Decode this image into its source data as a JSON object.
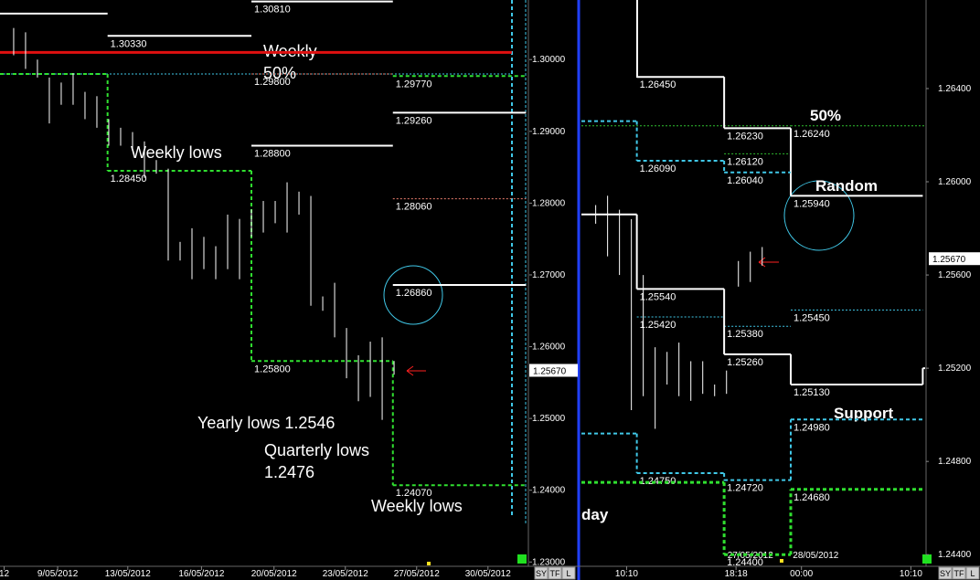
{
  "chart_data": [
    {
      "type": "ohlc",
      "xlim": [
        -0.15,
        44.3
      ],
      "ylim": [
        1.2294,
        1.3083
      ],
      "yticks": [
        {
          "value": 1.3,
          "label": "1.30000"
        },
        {
          "value": 1.29,
          "label": "1.29000"
        },
        {
          "value": 1.28,
          "label": "1.28000"
        },
        {
          "value": 1.27,
          "label": "1.27000"
        },
        {
          "value": 1.26,
          "label": "1.26000"
        },
        {
          "value": 1.25,
          "label": "1.25000"
        },
        {
          "value": 1.24,
          "label": "1.24000"
        },
        {
          "value": 1.23,
          "label": "1.23000"
        }
      ],
      "xticks": [
        {
          "value": 0.2,
          "label": "12"
        },
        {
          "value": 4.7,
          "label": "9/05/2012"
        },
        {
          "value": 10.6,
          "label": "13/05/2012"
        },
        {
          "value": 16.8,
          "label": "16/05/2012"
        },
        {
          "value": 22.9,
          "label": "20/05/2012"
        },
        {
          "value": 28.9,
          "label": "23/05/2012"
        },
        {
          "value": 34.9,
          "label": "27/05/2012"
        },
        {
          "value": 40.9,
          "label": "30/05/2012"
        }
      ],
      "bar_color": "#ffffff",
      "x": [
        1,
        2,
        3,
        4,
        5,
        6,
        7,
        8,
        9,
        10,
        11,
        12,
        13,
        14,
        15,
        16,
        17,
        18,
        19,
        20,
        21,
        22,
        23,
        24,
        25,
        26,
        27,
        28,
        29,
        30,
        31,
        32,
        33
      ],
      "high": [
        1.3044,
        1.3038,
        1.3,
        1.2975,
        1.2968,
        1.2981,
        1.2955,
        1.2949,
        1.2917,
        1.2905,
        1.2899,
        1.2886,
        1.286,
        1.2848,
        1.2746,
        1.2765,
        1.2753,
        1.274,
        1.2784,
        1.2778,
        1.2791,
        1.2803,
        1.2803,
        1.2829,
        1.2816,
        1.281,
        1.267,
        1.2689,
        1.2626,
        1.2588,
        1.2607,
        1.2613,
        1.258
      ],
      "low": [
        1.3006,
        1.2987,
        1.2975,
        1.2911,
        1.2937,
        1.2937,
        1.2917,
        1.2905,
        1.288,
        1.288,
        1.2873,
        1.2835,
        1.2841,
        1.272,
        1.272,
        1.2694,
        1.2708,
        1.2694,
        1.2708,
        1.2694,
        1.2753,
        1.2759,
        1.2772,
        1.2759,
        1.2784,
        1.2657,
        1.265,
        1.2613,
        1.2556,
        1.2524,
        1.253,
        1.2498,
        1.2561
      ],
      "levels": [
        {
          "value": 1.3081,
          "label": "1.30810",
          "color": "#ffffff",
          "style": "solid",
          "from": 21,
          "to": 32.9
        },
        {
          "value": 1.3064,
          "color": "#ffffff",
          "style": "solid",
          "from": -0.15,
          "to": 8.9
        },
        {
          "value": 1.3033,
          "label": "1.30330",
          "color": "#ffffff",
          "style": "solid",
          "from": 8.9,
          "to": 21
        },
        {
          "value": 1.301,
          "color": "#e01010",
          "style": "thick",
          "from": -0.15,
          "to": 42.9
        },
        {
          "value": 1.298,
          "color": "#40c8e8",
          "style": "dotted",
          "from": -0.15,
          "to": 42.9
        },
        {
          "value": 1.298,
          "label": "1.29800",
          "color": "#f08070",
          "style": "dotted",
          "from": 21,
          "to": 32.9
        },
        {
          "value": 1.2977,
          "label": "1.29770",
          "color": "#30e030",
          "style": "dashed",
          "from": 32.9,
          "to": 44.1
        },
        {
          "value": 1.2926,
          "label": "1.29260",
          "color": "#ffffff",
          "style": "solid",
          "from": 32.9,
          "to": 44.1
        },
        {
          "value": 1.288,
          "label": "1.28800",
          "color": "#ffffff",
          "style": "solid",
          "from": 21,
          "to": 32.9
        },
        {
          "value": 1.2806,
          "label": "1.28060",
          "color": "#f08070",
          "style": "dotted",
          "from": 32.9,
          "to": 44.1
        },
        {
          "value": 1.2686,
          "label": "1.26860",
          "color": "#ffffff",
          "style": "solid",
          "from": 32.9,
          "to": 44.1
        }
      ],
      "steps": [
        {
          "color": "#30e030",
          "style": "dashed",
          "edges": [
            -0.15,
            8.9,
            21,
            32.9,
            44.1
          ],
          "values": [
            1.298,
            1.2845,
            1.258,
            1.2407
          ],
          "labels": [
            null,
            "1.28450",
            "1.25800",
            "1.24070"
          ]
        }
      ],
      "last": {
        "value": 1.2567,
        "label": "1.25670"
      }
    },
    {
      "type": "ohlc",
      "xlim": [
        -1.2,
        27.7
      ],
      "ylim": [
        1.2435,
        1.2678
      ],
      "yticks": [
        {
          "value": 1.264,
          "label": "1.26400"
        },
        {
          "value": 1.26,
          "label": "1.26000"
        },
        {
          "value": 1.256,
          "label": "1.25600"
        },
        {
          "value": 1.252,
          "label": "1.25200"
        },
        {
          "value": 1.248,
          "label": "1.24800"
        },
        {
          "value": 1.244,
          "label": "1.24400"
        }
      ],
      "xticks": [
        {
          "value": 2.6,
          "label": "10:10"
        },
        {
          "value": 11.8,
          "label": "18:18"
        },
        {
          "value": 17.3,
          "label": "00:00"
        },
        {
          "value": 26.5,
          "label": "10:10"
        }
      ],
      "date_labels": [
        {
          "value": 13,
          "label": "27/05/2012"
        },
        {
          "value": 18.5,
          "label": "28/05/2012"
        }
      ],
      "bar_color": "#ffffff",
      "x": [
        0,
        1,
        2,
        3,
        4,
        5,
        6,
        7,
        8,
        9,
        10,
        11,
        12,
        13,
        14
      ],
      "high": [
        1.259,
        1.2594,
        1.2588,
        1.2584,
        1.256,
        1.2529,
        1.2527,
        1.2531,
        1.2523,
        1.2523,
        1.2513,
        1.2519,
        1.2566,
        1.257,
        1.2572
      ],
      "low": [
        1.2582,
        1.2568,
        1.256,
        1.2502,
        1.2508,
        1.2494,
        1.2513,
        1.2508,
        1.2506,
        1.2509,
        1.2508,
        1.2509,
        1.2555,
        1.2557,
        1.2564
      ],
      "levels": [
        {
          "value": 1.2624,
          "color": "#30c030",
          "style": "dotted",
          "from": -1.2,
          "to": 16.4
        },
        {
          "value": 1.2624,
          "label": "1.26240",
          "color": "#30c030",
          "style": "dotted",
          "from": 16.4,
          "to": 27.7
        },
        {
          "value": 1.2612,
          "label": "1.26120",
          "color": "#30c030",
          "style": "dotted",
          "from": 10.8,
          "to": 16.4
        },
        {
          "value": 1.2542,
          "label": "1.25420",
          "color": "#40c8e8",
          "style": "dotted",
          "from": 3.46,
          "to": 10.8
        },
        {
          "value": 1.2538,
          "label": "1.25380",
          "color": "#40c8e8",
          "style": "dotted",
          "from": 10.8,
          "to": 16.4
        },
        {
          "value": 1.2545,
          "label": "1.25450",
          "color": "#40c8e8",
          "style": "dotted",
          "from": 16.4,
          "to": 27.5
        }
      ],
      "steps": [
        {
          "color": "#ffffff",
          "style": "solid",
          "edges": [
            3.46,
            10.8,
            16.4,
            27.5
          ],
          "values": [
            1.2645,
            1.2623,
            1.2594
          ],
          "labels": [
            "1.26450",
            "1.26230",
            "1.25940"
          ]
        },
        {
          "color": "#ffffff",
          "style": "solid",
          "edges": [
            -1.2,
            3.46,
            10.8,
            16.4,
            27.5,
            27.7
          ],
          "values": [
            1.2586,
            1.2554,
            1.2526,
            1.2513,
            1.252
          ],
          "labels": [
            null,
            "1.25540",
            "1.25260",
            "1.25130",
            null
          ]
        },
        {
          "color": "#40c8e8",
          "style": "dashed",
          "edges": [
            -1.2,
            3.46,
            10.8,
            16.4
          ],
          "values": [
            1.2626,
            1.2609,
            1.2604
          ],
          "labels": [
            null,
            "1.26090",
            "1.26040"
          ]
        },
        {
          "color": "#40c8e8",
          "style": "dashed",
          "edges": [
            -1.2,
            3.46,
            10.8,
            16.4,
            27.5
          ],
          "values": [
            1.2492,
            1.2475,
            1.2472,
            1.2498
          ],
          "labels": [
            null,
            "1.24750",
            "1.24720",
            "1.24980"
          ]
        },
        {
          "color": "#30e030",
          "style": "thick-dashed",
          "edges": [
            -1.2,
            10.8,
            16.4,
            27.7
          ],
          "values": [
            1.2471,
            1.244,
            1.2468
          ],
          "labels": [
            null,
            "1.24400",
            "1.24680"
          ]
        }
      ],
      "last": {
        "value": 1.2567,
        "label": "1.25670"
      }
    }
  ],
  "annotations": {
    "weekly": "Weekly",
    "fifty": "50%",
    "weekly_lows_1": "Weekly lows",
    "yearly": "Yearly lows 1.2546",
    "quarterly": "Quarterly lows",
    "quarterly_value": "1.2476",
    "weekly_lows_2": "Weekly lows",
    "right_fifty": "50%",
    "random": "Random",
    "support": "Support",
    "today": "day"
  },
  "toolbar": [
    "SY",
    "TF",
    "L"
  ]
}
